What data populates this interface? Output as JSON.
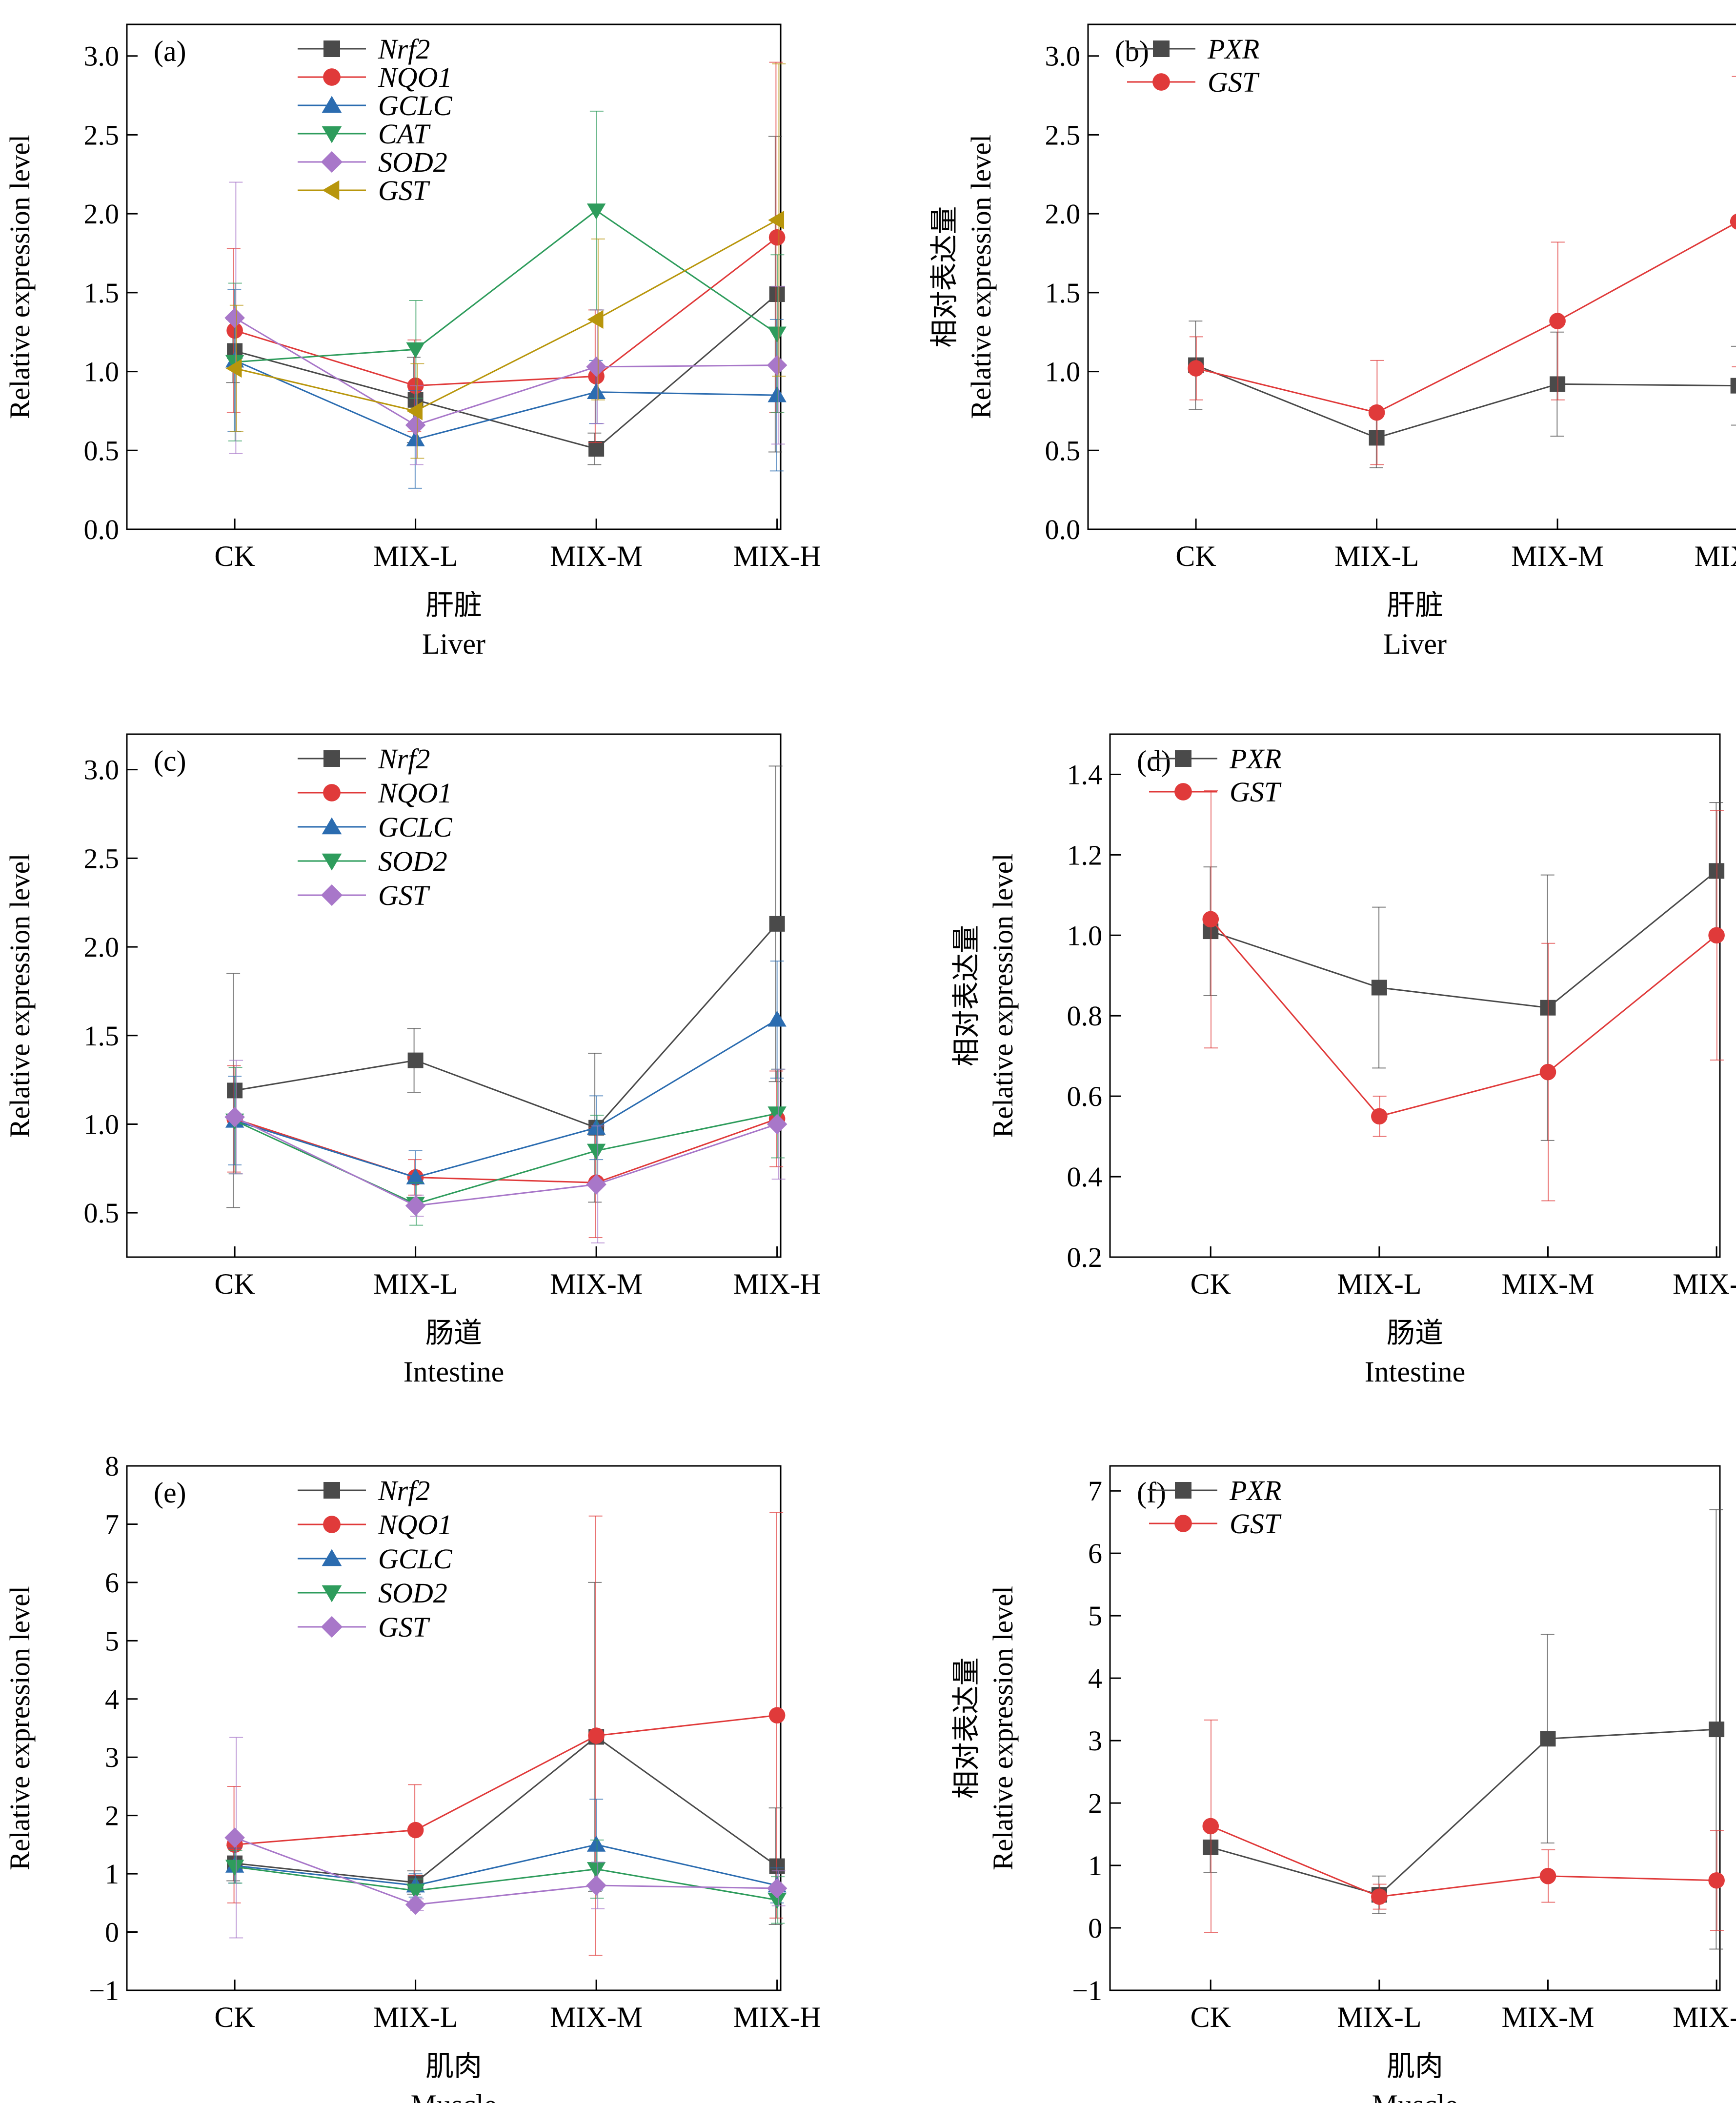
{
  "categories": [
    "CK",
    "MIX-L",
    "MIX-M",
    "MIX-H"
  ],
  "panels": [
    {
      "id": "a",
      "label": "(a)",
      "ylabel_cn": "相对表达量",
      "ylabel_en": "Relative expression level",
      "xlabel_cn": "肝脏",
      "xlabel_en": "Liver",
      "ylim": [
        0,
        3.2
      ],
      "yticks": [
        0.0,
        0.5,
        1.0,
        1.5,
        2.0,
        2.5,
        3.0
      ],
      "ytick_labels": [
        "0.0",
        "0.5",
        "1.0",
        "1.5",
        "2.0",
        "2.5",
        "3.0"
      ],
      "series": [
        {
          "name": "Nrf2",
          "color": "#4a4a4a",
          "marker": "square",
          "values": [
            1.13,
            0.82,
            0.51,
            1.49
          ],
          "err": [
            0.2,
            0.27,
            0.1,
            1.0
          ]
        },
        {
          "name": "NQO1",
          "color": "#e03a3a",
          "marker": "circle",
          "values": [
            1.26,
            0.91,
            0.97,
            1.85
          ],
          "err": [
            0.52,
            0.29,
            0.42,
            1.11
          ]
        },
        {
          "name": "GCLC",
          "color": "#2b6cb0",
          "marker": "triangle-up",
          "values": [
            1.07,
            0.57,
            0.87,
            0.85
          ],
          "err": [
            0.45,
            0.31,
            0.2,
            0.48
          ]
        },
        {
          "name": "CAT",
          "color": "#2e9c5c",
          "marker": "triangle-down",
          "values": [
            1.06,
            1.14,
            2.02,
            1.24
          ],
          "err": [
            0.5,
            0.31,
            0.63,
            0.5
          ]
        },
        {
          "name": "SOD2",
          "color": "#a877c9",
          "marker": "diamond",
          "values": [
            1.34,
            0.66,
            1.03,
            1.04
          ],
          "err": [
            0.86,
            0.25,
            0.36,
            0.5
          ]
        },
        {
          "name": "GST",
          "color": "#b8960c",
          "marker": "triangle-left",
          "values": [
            1.02,
            0.75,
            1.33,
            1.96
          ],
          "err": [
            0.4,
            0.3,
            0.51,
            0.99
          ]
        }
      ]
    },
    {
      "id": "b",
      "label": "(b)",
      "ylabel_cn": "相对表达量",
      "ylabel_en": "Relative expression level",
      "xlabel_cn": "肝脏",
      "xlabel_en": "Liver",
      "ylim": [
        0,
        3.2
      ],
      "yticks": [
        0.0,
        0.5,
        1.0,
        1.5,
        2.0,
        2.5,
        3.0
      ],
      "ytick_labels": [
        "0.0",
        "0.5",
        "1.0",
        "1.5",
        "2.0",
        "2.5",
        "3.0"
      ],
      "series": [
        {
          "name": "PXR",
          "color": "#4a4a4a",
          "marker": "square",
          "values": [
            1.04,
            0.58,
            0.92,
            0.91
          ],
          "err": [
            0.28,
            0.19,
            0.33,
            0.25
          ]
        },
        {
          "name": "GST",
          "color": "#e03a3a",
          "marker": "circle",
          "values": [
            1.02,
            0.74,
            1.32,
            1.95
          ],
          "err": [
            0.2,
            0.33,
            0.5,
            0.92
          ]
        }
      ]
    },
    {
      "id": "c",
      "label": "(c)",
      "ylabel_cn": "相对表达量",
      "ylabel_en": "Relative expression level",
      "xlabel_cn": "肠道",
      "xlabel_en": "Intestine",
      "ylim": [
        0.25,
        3.2
      ],
      "yticks": [
        0.5,
        1.0,
        1.5,
        2.0,
        2.5,
        3.0
      ],
      "ytick_labels": [
        "0.5",
        "1.0",
        "1.5",
        "2.0",
        "2.5",
        "3.0"
      ],
      "series": [
        {
          "name": "Nrf2",
          "color": "#4a4a4a",
          "marker": "square",
          "values": [
            1.19,
            1.36,
            0.98,
            2.13
          ],
          "err": [
            0.66,
            0.18,
            0.42,
            0.89
          ]
        },
        {
          "name": "NQO1",
          "color": "#e03a3a",
          "marker": "circle",
          "values": [
            1.03,
            0.7,
            0.67,
            1.03
          ],
          "err": [
            0.3,
            0.1,
            0.31,
            0.27
          ]
        },
        {
          "name": "GCLC",
          "color": "#2b6cb0",
          "marker": "triangle-up",
          "values": [
            1.02,
            0.7,
            0.98,
            1.59
          ],
          "err": [
            0.25,
            0.15,
            0.18,
            0.33
          ]
        },
        {
          "name": "SOD2",
          "color": "#2e9c5c",
          "marker": "triangle-down",
          "values": [
            1.02,
            0.55,
            0.85,
            1.06
          ],
          "err": [
            0.3,
            0.12,
            0.2,
            0.25
          ]
        },
        {
          "name": "GST",
          "color": "#a877c9",
          "marker": "diamond",
          "values": [
            1.04,
            0.54,
            0.66,
            1.0
          ],
          "err": [
            0.32,
            0.06,
            0.33,
            0.31
          ]
        }
      ]
    },
    {
      "id": "d",
      "label": "(d)",
      "ylabel_cn": "相对表达量",
      "ylabel_en": "Relative expression level",
      "xlabel_cn": "肠道",
      "xlabel_en": "Intestine",
      "ylim": [
        0.2,
        1.5
      ],
      "yticks": [
        0.2,
        0.4,
        0.6,
        0.8,
        1.0,
        1.2,
        1.4
      ],
      "ytick_labels": [
        "0.2",
        "0.4",
        "0.6",
        "0.8",
        "1.0",
        "1.2",
        "1.4"
      ],
      "series": [
        {
          "name": "PXR",
          "color": "#4a4a4a",
          "marker": "square",
          "values": [
            1.01,
            0.87,
            0.82,
            1.16
          ],
          "err": [
            0.16,
            0.2,
            0.33,
            0.17
          ]
        },
        {
          "name": "GST",
          "color": "#e03a3a",
          "marker": "circle",
          "values": [
            1.04,
            0.55,
            0.66,
            1.0
          ],
          "err": [
            0.32,
            0.05,
            0.32,
            0.31
          ]
        }
      ]
    },
    {
      "id": "e",
      "label": "(e)",
      "ylabel_cn": "相对表达量",
      "ylabel_en": "Relative expression level",
      "xlabel_cn": "肌肉",
      "xlabel_en": "Muscle",
      "ylim": [
        -1,
        8
      ],
      "yticks": [
        -1,
        0,
        1,
        2,
        3,
        4,
        5,
        6,
        7,
        8
      ],
      "ytick_labels": [
        "−1",
        "0",
        "1",
        "2",
        "3",
        "4",
        "5",
        "6",
        "7",
        "8"
      ],
      "series": [
        {
          "name": "Nrf2",
          "color": "#4a4a4a",
          "marker": "square",
          "values": [
            1.18,
            0.85,
            3.35,
            1.13
          ],
          "err": [
            0.3,
            0.2,
            2.65,
            1.0
          ]
        },
        {
          "name": "NQO1",
          "color": "#e03a3a",
          "marker": "circle",
          "values": [
            1.5,
            1.75,
            3.37,
            3.72
          ],
          "err": [
            1.0,
            0.78,
            3.77,
            3.48
          ]
        },
        {
          "name": "GCLC",
          "color": "#2b6cb0",
          "marker": "triangle-up",
          "values": [
            1.14,
            0.8,
            1.5,
            0.8
          ],
          "err": [
            0.3,
            0.2,
            0.78,
            0.3
          ]
        },
        {
          "name": "SOD2",
          "color": "#2e9c5c",
          "marker": "triangle-down",
          "values": [
            1.12,
            0.71,
            1.08,
            0.55
          ],
          "err": [
            0.28,
            0.2,
            0.5,
            0.4
          ]
        },
        {
          "name": "GST",
          "color": "#a877c9",
          "marker": "diamond",
          "values": [
            1.62,
            0.47,
            0.8,
            0.75
          ],
          "err": [
            1.72,
            0.1,
            0.4,
            0.3
          ]
        }
      ]
    },
    {
      "id": "f",
      "label": "(f)",
      "ylabel_cn": "相对表达量",
      "ylabel_en": "Relative expression level",
      "xlabel_cn": "肌肉",
      "xlabel_en": "Muscle",
      "ylim": [
        -1,
        7.4
      ],
      "yticks": [
        -1,
        0,
        1,
        2,
        3,
        4,
        5,
        6,
        7
      ],
      "ytick_labels": [
        "−1",
        "0",
        "1",
        "2",
        "3",
        "4",
        "5",
        "6",
        "7"
      ],
      "series": [
        {
          "name": "PXR",
          "color": "#4a4a4a",
          "marker": "square",
          "values": [
            1.29,
            0.53,
            3.03,
            3.18
          ],
          "err": [
            0.4,
            0.3,
            1.67,
            3.52
          ]
        },
        {
          "name": "GST",
          "color": "#e03a3a",
          "marker": "circle",
          "values": [
            1.63,
            0.5,
            0.83,
            0.76
          ],
          "err": [
            1.7,
            0.2,
            0.42,
            0.8
          ]
        }
      ]
    }
  ]
}
